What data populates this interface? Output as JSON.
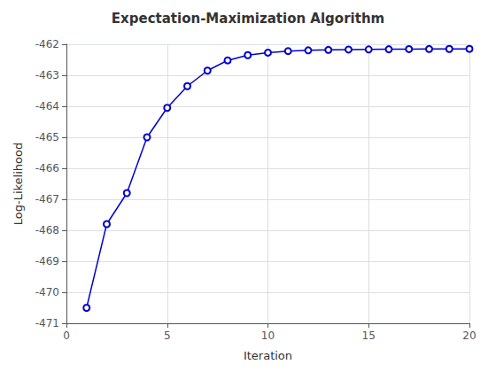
{
  "chart_data": {
    "type": "line",
    "title": "Expectation-Maximization Algorithm",
    "xlabel": "Iteration",
    "ylabel": "Log-Likelihood",
    "x": [
      1,
      2,
      3,
      4,
      5,
      6,
      7,
      8,
      9,
      10,
      11,
      12,
      13,
      14,
      15,
      16,
      17,
      18,
      19,
      20
    ],
    "values": [
      -470.5,
      -467.8,
      -466.8,
      -465.0,
      -464.05,
      -463.35,
      -462.85,
      -462.52,
      -462.35,
      -462.27,
      -462.22,
      -462.195,
      -462.18,
      -462.17,
      -462.165,
      -462.16,
      -462.155,
      -462.152,
      -462.15,
      -462.148
    ],
    "color": "#0000cd",
    "marker": "circle",
    "xlim": [
      0,
      20
    ],
    "xticks": [
      0,
      5,
      10,
      15,
      20
    ],
    "ylim": [
      -471,
      -462
    ],
    "yticks": [
      -471,
      -470,
      -469,
      -468,
      -467,
      -466,
      -465,
      -464,
      -463,
      -462
    ],
    "grid": true
  }
}
